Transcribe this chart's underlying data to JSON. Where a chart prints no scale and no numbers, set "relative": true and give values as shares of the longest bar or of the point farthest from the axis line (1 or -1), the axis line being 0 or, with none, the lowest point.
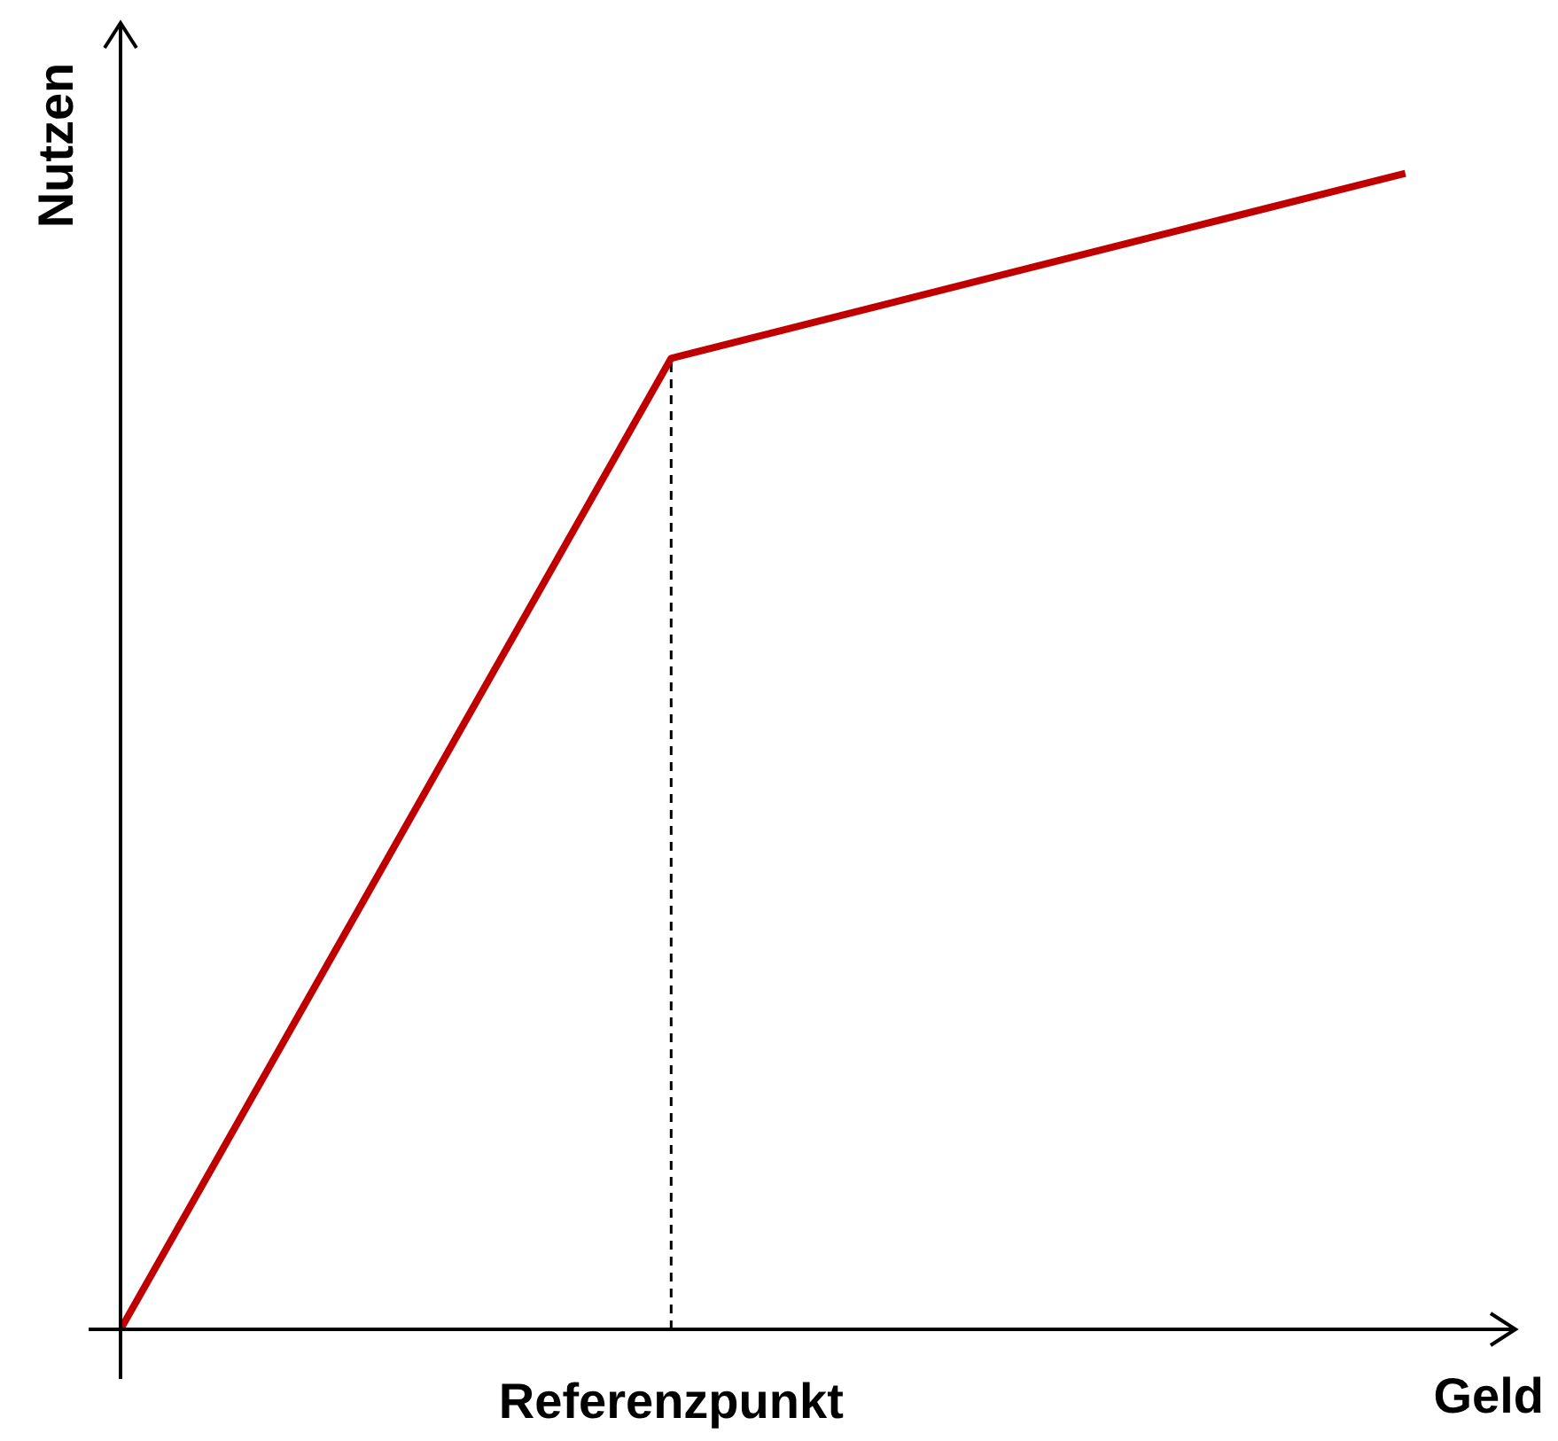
{
  "chart_data": {
    "type": "line",
    "xlabel": "Geld",
    "ylabel": "Nutzen",
    "categories": [
      null,
      null,
      null,
      null,
      null,
      null,
      null,
      null
    ],
    "series": [
      {
        "color": "#c00000",
        "values": [
          0,
          0.28,
          0.56,
          0.84,
          0.88,
          0.92,
          0.96,
          1
        ]
      }
    ],
    "relative": true,
    "line_style": "solid",
    "annotations": [
      {
        "text": "Referenzpunkt",
        "y": 0.84
      }
    ]
  }
}
